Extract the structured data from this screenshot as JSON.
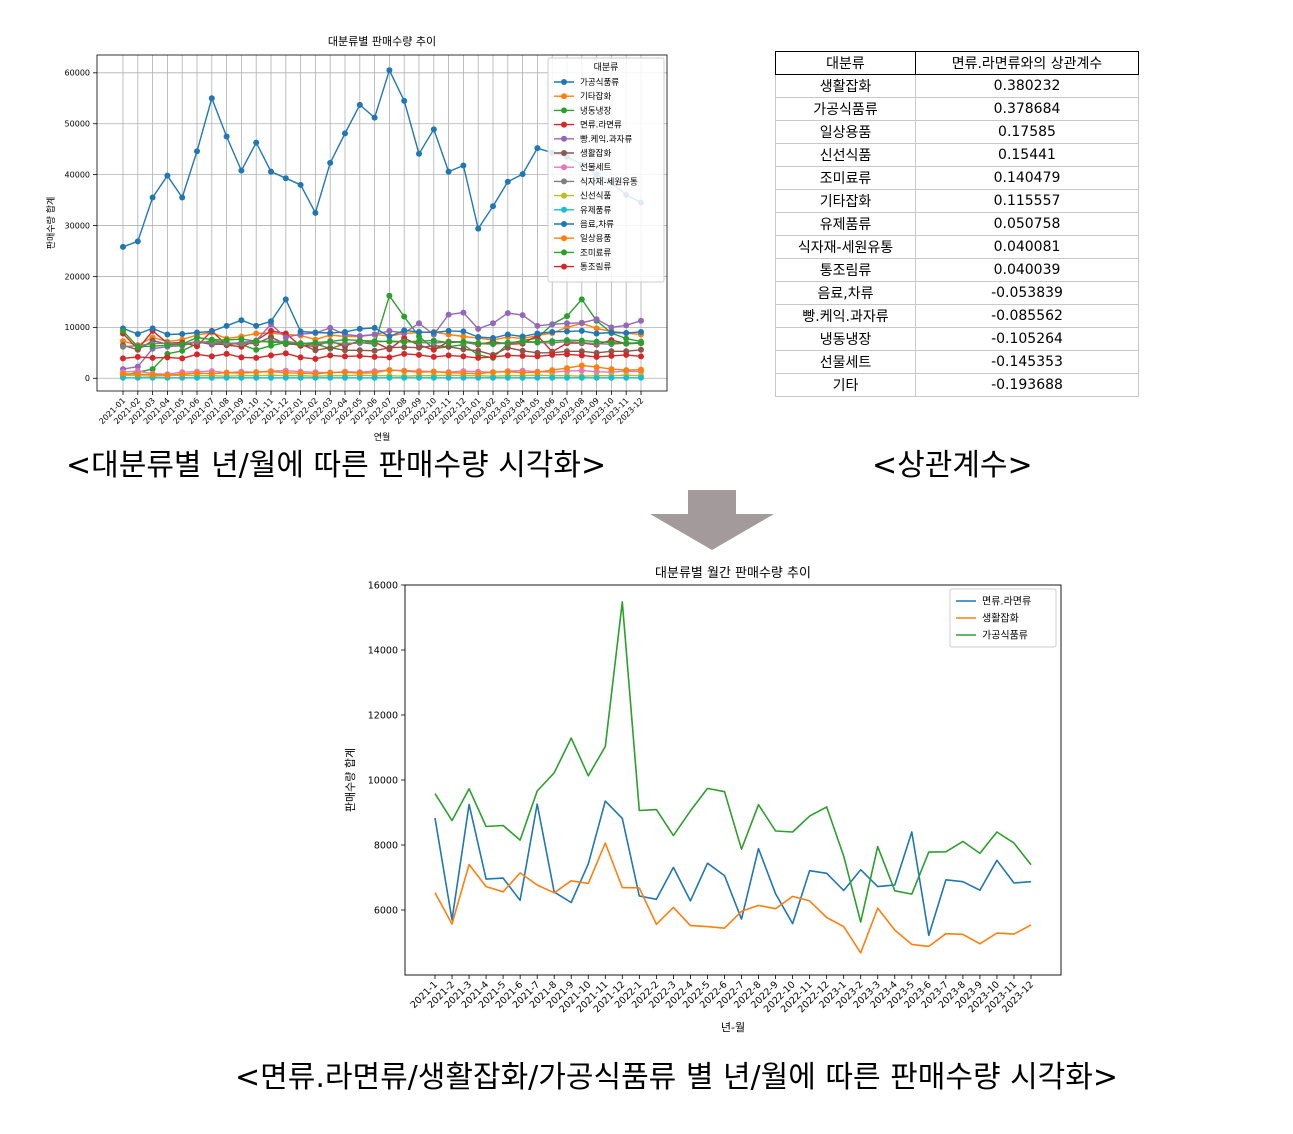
{
  "captions": {
    "top_left": "<대분류별 년/월에 따른 판매수량 시각화>",
    "top_right": "<상관계수>",
    "bottom": "<면류.라면류/생활잡화/가공식품류 별 년/월에 따른 판매수량 시각화>"
  },
  "arrow_color": "#a39b9b",
  "correlation_table": {
    "headers": [
      "대분류",
      "면류.라면류와의 상관계수"
    ],
    "rows": [
      [
        "생활잡화",
        "0.380232"
      ],
      [
        "가공식품류",
        "0.378684"
      ],
      [
        "일상용품",
        "0.17585"
      ],
      [
        "신선식품",
        "0.15441"
      ],
      [
        "조미료류",
        "0.140479"
      ],
      [
        "기타잡화",
        "0.115557"
      ],
      [
        "유제품류",
        "0.050758"
      ],
      [
        "식자재-세원유통",
        "0.040081"
      ],
      [
        "통조림류",
        "0.040039"
      ],
      [
        "음료,차류",
        "-0.053839"
      ],
      [
        "빵.케익.과자류",
        "-0.085562"
      ],
      [
        "냉동냉장",
        "-0.105264"
      ],
      [
        "선물세트",
        "-0.145353"
      ],
      [
        "기타",
        "-0.193688"
      ]
    ]
  },
  "chart_data": [
    {
      "type": "line",
      "title": "대분류별 판매수량 추이",
      "xlabel": "연월",
      "ylabel": "판매수량 합계",
      "ylim": [
        -2500,
        63500
      ],
      "yticks": [
        0,
        10000,
        20000,
        30000,
        40000,
        50000,
        60000
      ],
      "markers": true,
      "grid": true,
      "legend": {
        "title": "대분류",
        "placement": "top-right"
      },
      "categories": [
        "2021-01",
        "2021-02",
        "2021-03",
        "2021-04",
        "2021-05",
        "2021-06",
        "2021-07",
        "2021-08",
        "2021-09",
        "2021-10",
        "2021-11",
        "2021-12",
        "2022-01",
        "2022-02",
        "2022-03",
        "2022-04",
        "2022-05",
        "2022-06",
        "2022-07",
        "2022-08",
        "2022-09",
        "2022-10",
        "2022-11",
        "2022-12",
        "2023-01",
        "2023-02",
        "2023-03",
        "2023-04",
        "2023-05",
        "2023-06",
        "2023-07",
        "2023-08",
        "2023-09",
        "2023-10",
        "2023-11",
        "2023-12"
      ],
      "series": [
        {
          "name": "가공식품류",
          "color": "#1f77b4",
          "values": [
            25800,
            26900,
            35500,
            39800,
            35500,
            44600,
            55000,
            47500,
            40800,
            46300,
            40600,
            39300,
            38000,
            32500,
            42300,
            48100,
            53700,
            51200,
            60500,
            54500,
            44100,
            48900,
            40600,
            41800,
            29400,
            33800,
            38600,
            40100,
            45200,
            44300,
            43500,
            42000,
            40000,
            38500,
            36000,
            34500
          ]
        },
        {
          "name": "기타잡화",
          "color": "#ff7f0e",
          "values": [
            7300,
            6500,
            8000,
            7200,
            7600,
            8500,
            9000,
            7800,
            8200,
            8800,
            8900,
            8600,
            8400,
            7600,
            8500,
            8200,
            8200,
            8600,
            8300,
            8800,
            9000,
            9100,
            8600,
            8200,
            7900,
            7500,
            8100,
            7800,
            8400,
            8900,
            10000,
            10800,
            9800,
            9200,
            8900,
            8600
          ]
        },
        {
          "name": "냉동냉장",
          "color": "#2ca02c",
          "values": [
            500,
            1200,
            1800,
            4800,
            5400,
            6800,
            7400,
            7000,
            6600,
            5600,
            6400,
            7000,
            6400,
            6800,
            5800,
            6800,
            7000,
            6700,
            16200,
            12100,
            8200,
            5800,
            6200,
            6600,
            4600,
            4000,
            6800,
            7400,
            7900,
            10600,
            12200,
            15500,
            11300,
            8900,
            7800,
            7200
          ]
        },
        {
          "name": "면류.라면류",
          "color": "#d62728",
          "values": [
            8800,
            5700,
            9300,
            6900,
            7000,
            6300,
            9300,
            6500,
            6200,
            7400,
            9300,
            8800,
            6400,
            6300,
            7300,
            6300,
            7400,
            7100,
            5700,
            7900,
            6500,
            5600,
            7200,
            7100,
            6600,
            7200,
            6700,
            6800,
            8400,
            5200,
            6900,
            6900,
            6600,
            7500,
            6800,
            6900
          ]
        },
        {
          "name": "빵.케익.과자류",
          "color": "#9467bd",
          "values": [
            1800,
            2300,
            5800,
            6200,
            6400,
            7200,
            6600,
            6800,
            7000,
            7400,
            10600,
            8000,
            8700,
            8900,
            9900,
            8600,
            8300,
            8600,
            9300,
            8900,
            10800,
            8600,
            12500,
            12900,
            9700,
            10800,
            12800,
            12400,
            10300,
            10600,
            10800,
            10900,
            11600,
            10000,
            10400,
            11300
          ]
        },
        {
          "name": "생활잡화",
          "color": "#8c564b",
          "values": [
            6500,
            5600,
            7400,
            6700,
            6600,
            7100,
            6800,
            6600,
            6900,
            6800,
            8100,
            6700,
            6700,
            5500,
            6000,
            5500,
            5500,
            5400,
            6000,
            6100,
            6000,
            6400,
            6200,
            5700,
            5400,
            4600,
            6000,
            5400,
            5000,
            5000,
            5300,
            5300,
            5000,
            5300,
            5300,
            5600
          ]
        },
        {
          "name": "선물세트",
          "color": "#e377c2",
          "values": [
            1200,
            1400,
            900,
            800,
            1200,
            1300,
            1400,
            1100,
            1300,
            1200,
            1400,
            1500,
            1300,
            1200,
            1100,
            1300,
            1200,
            1400,
            1600,
            1500,
            1400,
            1300,
            1200,
            1400,
            1300,
            1200,
            1400,
            1500,
            1300,
            1200,
            1400,
            1500,
            1300,
            1200,
            1400,
            1300
          ]
        },
        {
          "name": "식자재-세원유통",
          "color": "#7f7f7f",
          "values": [
            6200,
            6400,
            6800,
            6900,
            6700,
            7200,
            7000,
            6900,
            6800,
            7100,
            7300,
            7200,
            6900,
            6700,
            7000,
            6800,
            6900,
            7100,
            7300,
            7200,
            7000,
            6900,
            7100,
            7000,
            6800,
            6700,
            6900,
            7100,
            7000,
            6900,
            7200,
            7000,
            6800,
            6700,
            6900,
            7000
          ]
        },
        {
          "name": "신선식품",
          "color": "#bcbd22",
          "values": [
            600,
            500,
            400,
            500,
            600,
            500,
            500,
            400,
            500,
            500,
            600,
            500,
            500,
            400,
            500,
            500,
            600,
            500,
            500,
            400,
            500,
            500,
            600,
            500,
            500,
            400,
            500,
            500,
            600,
            500,
            500,
            400,
            500,
            500,
            600,
            500
          ]
        },
        {
          "name": "유제품류",
          "color": "#17becf",
          "values": [
            100,
            100,
            100,
            100,
            100,
            100,
            100,
            100,
            100,
            100,
            100,
            100,
            100,
            100,
            100,
            100,
            100,
            100,
            100,
            100,
            100,
            100,
            100,
            100,
            100,
            100,
            100,
            100,
            100,
            100,
            100,
            100,
            100,
            100,
            100,
            100
          ]
        },
        {
          "name": "음료,차류",
          "color": "#1f77b4",
          "values": [
            9800,
            8700,
            9800,
            8600,
            8700,
            9000,
            9200,
            10300,
            11400,
            10300,
            11200,
            15500,
            9200,
            9000,
            8900,
            9100,
            9700,
            9900,
            8200,
            9400,
            9100,
            9000,
            9300,
            9200,
            8100,
            7900,
            8600,
            8200,
            8800,
            9100,
            9200,
            9300,
            8800,
            9000,
            8900,
            9100
          ]
        },
        {
          "name": "일상용품",
          "color": "#ff7f0e",
          "values": [
            900,
            800,
            700,
            600,
            800,
            1000,
            900,
            1100,
            1000,
            1200,
            1300,
            1100,
            1000,
            900,
            1100,
            1200,
            1000,
            1100,
            1600,
            1400,
            1200,
            1300,
            1100,
            1000,
            900,
            1200,
            1300,
            1100,
            1200,
            1600,
            2000,
            2500,
            2200,
            1800,
            1600,
            1700
          ]
        },
        {
          "name": "조미료류",
          "color": "#2ca02c",
          "values": [
            9300,
            6200,
            6300,
            6500,
            6700,
            8000,
            7600,
            7500,
            7700,
            7300,
            7100,
            6900,
            6800,
            7000,
            7200,
            7600,
            7400,
            7300,
            7200,
            7100,
            7300,
            7400,
            7000,
            7200,
            6900,
            6800,
            7000,
            7200,
            7100,
            7300,
            7500,
            7400,
            7200,
            7000,
            6800,
            6900
          ]
        },
        {
          "name": "통조림류",
          "color": "#d62728",
          "values": [
            3900,
            4200,
            4000,
            4100,
            3900,
            4700,
            4300,
            4800,
            4100,
            4000,
            4500,
            4900,
            4100,
            3800,
            4500,
            4300,
            4400,
            4200,
            4100,
            4800,
            4600,
            4200,
            4500,
            4300,
            4000,
            4200,
            4500,
            4400,
            4300,
            4600,
            4700,
            4500,
            4200,
            4400,
            4600,
            4300
          ]
        }
      ]
    },
    {
      "type": "line",
      "title": "대분류별 월간 판매수량 추이",
      "xlabel": "년-월",
      "ylabel": "판매수량 합계",
      "ylim": [
        4000,
        16000
      ],
      "yticks": [
        6000,
        8000,
        10000,
        12000,
        14000,
        16000
      ],
      "markers": false,
      "grid": false,
      "legend": {
        "placement": "top-right"
      },
      "categories": [
        "2021-1",
        "2021-2",
        "2021-3",
        "2021-4",
        "2021-5",
        "2021-6",
        "2021-7",
        "2021-8",
        "2021-9",
        "2021-10",
        "2021-11",
        "2021-12",
        "2022-1",
        "2022-2",
        "2022-3",
        "2022-4",
        "2022-5",
        "2022-6",
        "2022-7",
        "2022-8",
        "2022-9",
        "2022-10",
        "2022-11",
        "2022-12",
        "2023-1",
        "2023-2",
        "2023-3",
        "2023-4",
        "2023-5",
        "2023-6",
        "2023-7",
        "2023-8",
        "2023-9",
        "2023-10",
        "2023-11",
        "2023-12"
      ],
      "series": [
        {
          "name": "면류.라면류",
          "color": "#1f77b4",
          "values": [
            8830,
            5700,
            9250,
            6950,
            6980,
            6300,
            9260,
            6550,
            6230,
            7420,
            9350,
            8820,
            6430,
            6330,
            7310,
            6280,
            7440,
            7060,
            5720,
            7890,
            6500,
            5580,
            7210,
            7130,
            6600,
            7240,
            6720,
            6770,
            8400,
            5220,
            6930,
            6870,
            6610,
            7530,
            6830,
            6870
          ]
        },
        {
          "name": "생활잡화",
          "color": "#ff7f0e",
          "values": [
            6530,
            5570,
            7400,
            6720,
            6560,
            7140,
            6770,
            6530,
            6900,
            6820,
            8060,
            6690,
            6680,
            5560,
            6080,
            5520,
            5490,
            5440,
            5960,
            6140,
            6040,
            6420,
            6280,
            5770,
            5490,
            4680,
            6060,
            5380,
            4940,
            4880,
            5270,
            5250,
            4960,
            5290,
            5260,
            5540
          ]
        },
        {
          "name": "가공식품류",
          "color": "#2ca02c",
          "values": [
            9580,
            8750,
            9730,
            8570,
            8600,
            8150,
            9660,
            10220,
            11290,
            10130,
            11030,
            15480,
            9060,
            9090,
            8290,
            9050,
            9740,
            9640,
            7870,
            9240,
            8430,
            8400,
            8890,
            9170,
            7660,
            5630,
            7950,
            6590,
            6490,
            7780,
            7790,
            8110,
            7740,
            8400,
            8060,
            7390
          ]
        }
      ]
    }
  ]
}
